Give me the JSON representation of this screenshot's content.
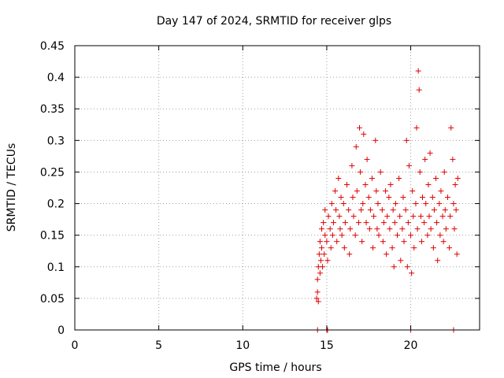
{
  "chart_data": {
    "type": "scatter",
    "title": "Day 147 of 2024, SRMTID for receiver glps",
    "xlabel": "GPS time / hours",
    "ylabel": "SRMTID / TECUs",
    "xlim": [
      0,
      24.1
    ],
    "ylim": [
      0,
      0.45
    ],
    "xticks": [
      0,
      5,
      10,
      15,
      20
    ],
    "xtick_labels": [
      "0",
      "5",
      "10",
      "15",
      "20"
    ],
    "yticks": [
      0,
      0.05,
      0.1,
      0.15,
      0.2,
      0.25,
      0.3,
      0.35,
      0.4,
      0.45
    ],
    "ytick_labels": [
      "0",
      "0.05",
      "0.1",
      "0.15",
      "0.2",
      "0.25",
      "0.3",
      "0.35",
      "0.4",
      "0.45"
    ],
    "grid": true,
    "marker": "+",
    "color": "#e00000",
    "series": [
      {
        "name": "SRMTID",
        "x": [
          14.4,
          14.45,
          14.45,
          14.5,
          14.5,
          14.55,
          14.6,
          14.6,
          14.65,
          14.7,
          14.7,
          14.75,
          14.8,
          14.85,
          14.9,
          14.9,
          15.0,
          15.05,
          15.1,
          15.2,
          15.25,
          15.3,
          15.35,
          15.4,
          15.5,
          15.55,
          15.6,
          15.7,
          15.75,
          15.8,
          15.85,
          15.9,
          16.0,
          16.05,
          16.1,
          16.2,
          16.3,
          16.35,
          16.4,
          16.5,
          16.55,
          16.6,
          16.7,
          16.75,
          16.8,
          16.9,
          16.95,
          17.0,
          17.05,
          17.1,
          17.15,
          17.2,
          17.3,
          17.35,
          17.4,
          17.5,
          17.55,
          17.6,
          17.7,
          17.75,
          17.8,
          17.9,
          17.95,
          18.0,
          18.05,
          18.1,
          18.2,
          18.3,
          18.35,
          18.4,
          18.5,
          18.55,
          18.6,
          18.7,
          18.75,
          18.8,
          18.9,
          18.95,
          19.0,
          19.05,
          19.1,
          19.2,
          19.3,
          19.35,
          19.4,
          19.5,
          19.55,
          19.6,
          19.7,
          19.75,
          19.8,
          19.85,
          19.9,
          20.0,
          20.05,
          20.1,
          20.15,
          20.2,
          20.3,
          20.35,
          20.4,
          20.45,
          20.5,
          20.55,
          20.6,
          20.65,
          20.7,
          20.8,
          20.85,
          20.9,
          21.0,
          21.05,
          21.1,
          21.15,
          21.2,
          21.3,
          21.35,
          21.4,
          21.5,
          21.55,
          21.6,
          21.7,
          21.75,
          21.8,
          21.9,
          21.95,
          22.0,
          22.05,
          22.1,
          22.2,
          22.3,
          22.35,
          22.4,
          22.5,
          22.55,
          22.6,
          22.65,
          22.7,
          22.75,
          22.8
        ],
        "y": [
          0.05,
          0.08,
          0.06,
          0.1,
          0.045,
          0.12,
          0.09,
          0.14,
          0.11,
          0.16,
          0.13,
          0.1,
          0.17,
          0.12,
          0.15,
          0.19,
          0.14,
          0.11,
          0.18,
          0.16,
          0.13,
          0.2,
          0.15,
          0.17,
          0.22,
          0.19,
          0.14,
          0.24,
          0.18,
          0.16,
          0.21,
          0.15,
          0.2,
          0.13,
          0.17,
          0.23,
          0.19,
          0.12,
          0.16,
          0.26,
          0.21,
          0.18,
          0.15,
          0.29,
          0.22,
          0.17,
          0.32,
          0.25,
          0.19,
          0.14,
          0.2,
          0.31,
          0.23,
          0.17,
          0.27,
          0.21,
          0.16,
          0.19,
          0.24,
          0.13,
          0.18,
          0.3,
          0.22,
          0.16,
          0.2,
          0.15,
          0.25,
          0.19,
          0.14,
          0.17,
          0.22,
          0.12,
          0.18,
          0.21,
          0.16,
          0.23,
          0.13,
          0.19,
          0.1,
          0.17,
          0.2,
          0.15,
          0.24,
          0.18,
          0.11,
          0.16,
          0.21,
          0.14,
          0.19,
          0.3,
          0.1,
          0.17,
          0.26,
          0.15,
          0.09,
          0.22,
          0.18,
          0.13,
          0.2,
          0.32,
          0.16,
          0.41,
          0.38,
          0.25,
          0.18,
          0.14,
          0.21,
          0.17,
          0.27,
          0.2,
          0.15,
          0.23,
          0.18,
          0.28,
          0.16,
          0.21,
          0.13,
          0.19,
          0.24,
          0.17,
          0.11,
          0.2,
          0.15,
          0.22,
          0.18,
          0.14,
          0.25,
          0.19,
          0.16,
          0.21,
          0.13,
          0.18,
          0.32,
          0.27,
          0.2,
          0.16,
          0.23,
          0.19,
          0.12,
          0.24
        ]
      }
    ],
    "zero_marks_x": [
      14.45,
      15.0,
      15.05,
      20.0,
      22.55
    ]
  }
}
